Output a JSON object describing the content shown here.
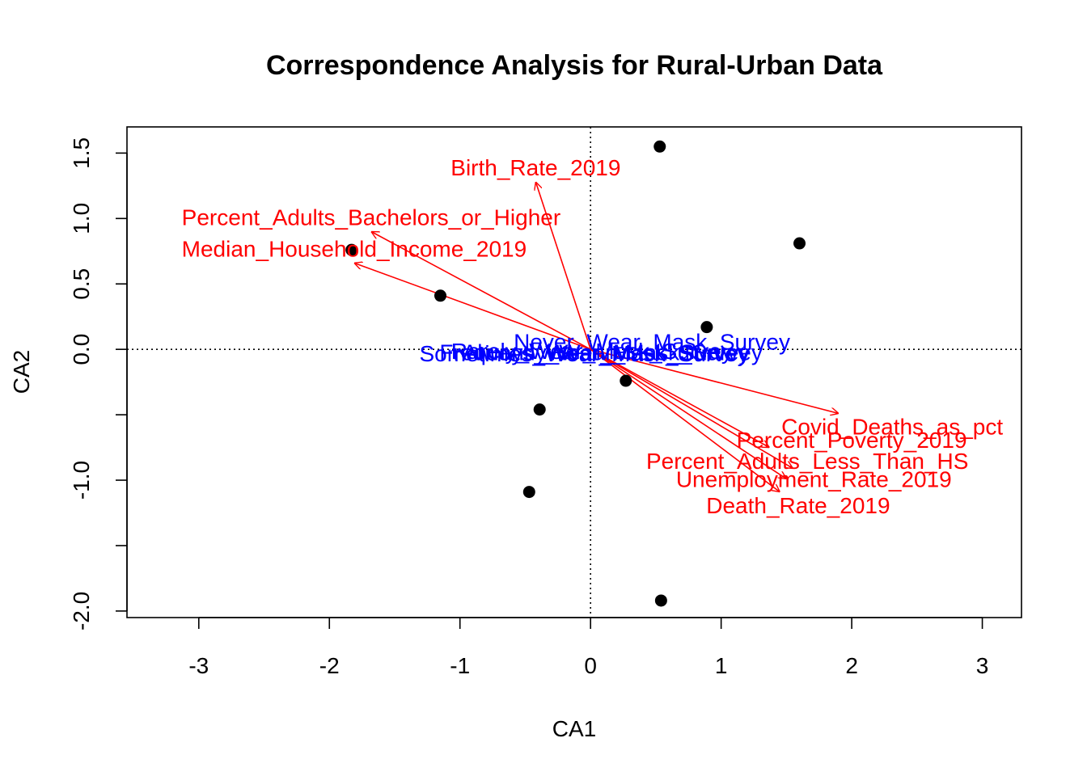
{
  "chart_data": {
    "type": "scatter",
    "title": "Correspondence Analysis for Rural-Urban Data",
    "xlabel": "CA1",
    "ylabel": "CA2",
    "xlim": [
      -3.55,
      3.3
    ],
    "ylim": [
      -2.05,
      1.7
    ],
    "xticks": [
      -3,
      -2,
      -1,
      0,
      1,
      2,
      3
    ],
    "yticks": [
      -2.0,
      -1.5,
      -1.0,
      -0.5,
      0.0,
      0.5,
      1.0,
      1.5
    ],
    "ytick_labels": [
      "-2.0",
      "",
      "-1.0",
      "",
      "0.0",
      "0.5",
      "1.0",
      "1.5"
    ],
    "reference_lines": {
      "x": 0,
      "y": 0,
      "style": "dotted"
    },
    "colors": {
      "points": "#000000",
      "arrows": "#ff0000",
      "column_labels": "#0000ff"
    },
    "points": [
      {
        "x": 0.53,
        "y": 1.55
      },
      {
        "x": 1.6,
        "y": 0.81
      },
      {
        "x": -1.83,
        "y": 0.76
      },
      {
        "x": -1.15,
        "y": 0.41
      },
      {
        "x": 0.89,
        "y": 0.17
      },
      {
        "x": 0.27,
        "y": -0.24
      },
      {
        "x": -0.39,
        "y": -0.46
      },
      {
        "x": -0.47,
        "y": -1.09
      },
      {
        "x": 0.54,
        "y": -1.92
      }
    ],
    "arrows": [
      {
        "label": "Birth_Rate_2019",
        "x": -0.42,
        "y": 1.28,
        "label_x": -0.42,
        "label_y": 1.39
      },
      {
        "label": "Percent_Adults_Bachelors_or_Higher",
        "x": -1.68,
        "y": 0.9,
        "label_x": -1.68,
        "label_y": 1.01
      },
      {
        "label": "Median_Household_Income_2019",
        "x": -1.81,
        "y": 0.66,
        "label_x": -1.81,
        "label_y": 0.77
      },
      {
        "label": "Covid_Deaths_as_pct",
        "x": 1.9,
        "y": -0.49,
        "label_x": 2.31,
        "label_y": -0.59
      },
      {
        "label": "Percent_Poverty_2019",
        "x": 1.37,
        "y": -0.75,
        "label_x": 2.0,
        "label_y": -0.69
      },
      {
        "label": "Percent_Adults_Less_Than_HS",
        "x": 1.55,
        "y": -0.91,
        "label_x": 1.66,
        "label_y": -0.85
      },
      {
        "label": "Unemployment_Rate_2019",
        "x": 1.5,
        "y": -0.99,
        "label_x": 1.71,
        "label_y": -0.99
      },
      {
        "label": "Death_Rate_2019",
        "x": 1.45,
        "y": -1.09,
        "label_x": 1.59,
        "label_y": -1.19
      }
    ],
    "column_labels": [
      {
        "label": "Never_Wear_Mask_Survey",
        "x": 0.47,
        "y": 0.06
      },
      {
        "label": "Rarely_Wear_Mask_Survey",
        "x": 0.01,
        "y": -0.01
      },
      {
        "label": "Sometimes_Wear_Mask_Survey",
        "x": -0.05,
        "y": -0.03
      },
      {
        "label": "Frequently_Wear_Mask_Survey",
        "x": 0.08,
        "y": -0.02
      },
      {
        "label": "Always_Wear_Mask_Survey",
        "x": 0.12,
        "y": -0.02
      }
    ]
  }
}
